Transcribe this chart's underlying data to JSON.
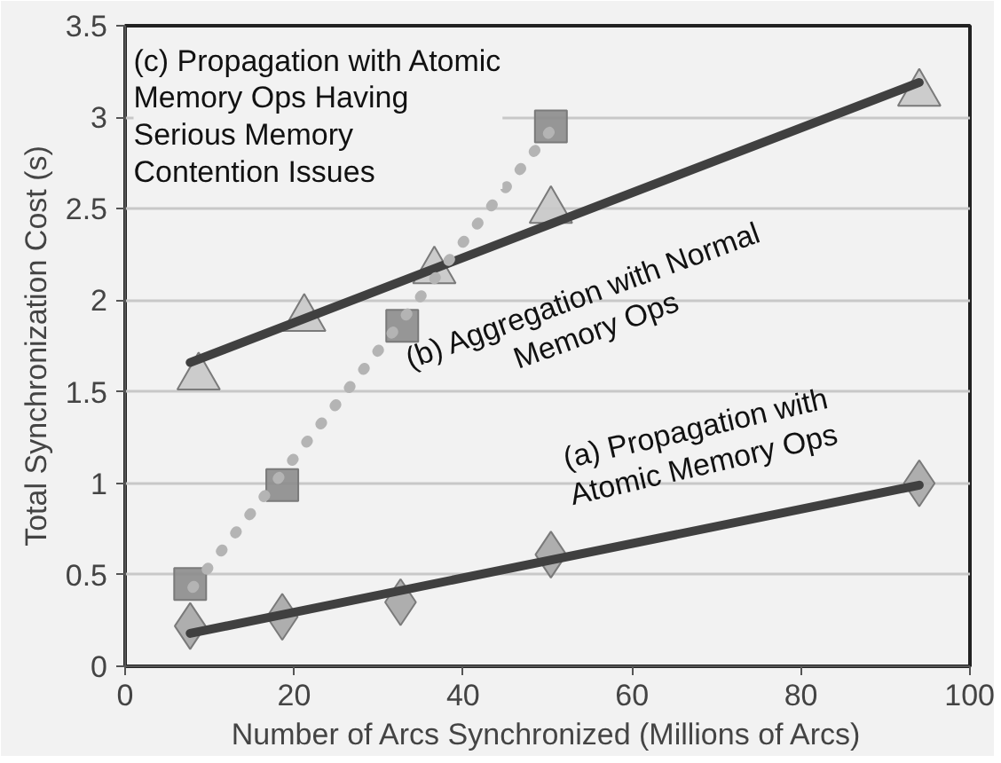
{
  "chart_data": {
    "type": "scatter",
    "xlabel": "Number of Arcs Synchronized (Millions of Arcs)",
    "ylabel": "Total Synchronization Cost (s)",
    "xlim": [
      0,
      100
    ],
    "ylim": [
      0,
      3.5
    ],
    "xticks": [
      0,
      20,
      40,
      60,
      80,
      100
    ],
    "yticks": [
      0,
      0.5,
      1,
      1.5,
      2,
      2.5,
      3,
      3.5
    ],
    "grid": "y",
    "series": [
      {
        "marker": "diamond",
        "color": "#a6a6a6",
        "x": [
          7.7,
          18.6,
          32.6,
          50.4,
          94
        ],
        "values": [
          0.22,
          0.27,
          0.35,
          0.61,
          1.0
        ]
      },
      {
        "marker": "triangle",
        "color": "#c8c8c8",
        "x": [
          8.7,
          21.2,
          36.6,
          50.4,
          94
        ],
        "values": [
          1.58,
          1.9,
          2.16,
          2.49,
          3.13
        ]
      },
      {
        "marker": "square",
        "color": "#8c8c8c",
        "x": [
          7.7,
          18.6,
          32.8,
          50.4
        ],
        "values": [
          0.45,
          0.99,
          1.86,
          2.95
        ]
      },
      {
        "type": "line",
        "line_style": "solid",
        "color": "#404040",
        "x": [
          7.7,
          94
        ],
        "values": [
          0.18,
          0.99
        ]
      },
      {
        "type": "line",
        "line_style": "solid",
        "color": "#404040",
        "x": [
          7.7,
          94
        ],
        "values": [
          1.66,
          3.19
        ]
      },
      {
        "type": "line",
        "line_style": "dotted",
        "color": "#b4b4b4",
        "x": [
          8,
          50.4
        ],
        "values": [
          0.43,
          2.93
        ]
      }
    ],
    "annotations": [
      "(a) Propagation with\nAtomic Memory Ops",
      "(b) Aggregation with Normal\nMemory Ops",
      "(c) Propagation with Atomic\nMemory Ops Having\nSerious Memory\nContention Issues"
    ]
  }
}
